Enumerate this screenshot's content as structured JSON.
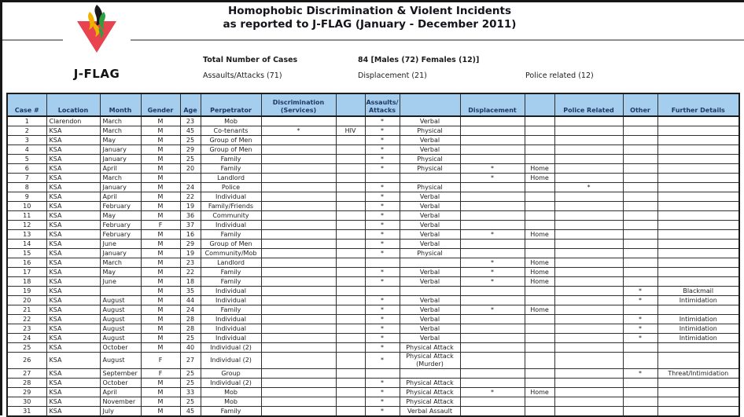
{
  "page": {
    "title_line1": "Homophobic Discrimination & Violent Incidents",
    "title_line2": "as reported to J-FLAG (January - December 2011)",
    "logo_text": "J-FLAG",
    "logo_colors": {
      "triangle": "#e8434f",
      "flame_black": "#1a1a1a",
      "flame_yellow": "#f0b400",
      "flame_green": "#2f9e41"
    }
  },
  "summary": {
    "total_label": "Total Number of Cases",
    "total_value": "84 [Males (72) Females (12)]",
    "assaults": "Assaults/Attacks (71)",
    "displacement": "Displacement (21)",
    "police": "Police related (12)"
  },
  "table": {
    "header_bg": "#a5cdee",
    "columns": [
      "Case #",
      "Location",
      "Month",
      "Gender",
      "Age",
      "Perpetrator",
      "Discrimination\n(Services)",
      "",
      "Assaults/\nAttacks",
      "",
      "Displacement",
      "",
      "Police Related",
      "Other",
      "Further Details"
    ],
    "rows": [
      [
        "1",
        "Clarendon",
        "March",
        "M",
        "23",
        "Mob",
        "",
        "",
        "*",
        "Verbal",
        "",
        "",
        "",
        "",
        ""
      ],
      [
        "2",
        "KSA",
        "March",
        "M",
        "45",
        "Co-tenants",
        "*",
        "HIV",
        "*",
        "Physical",
        "",
        "",
        "",
        "",
        ""
      ],
      [
        "3",
        "KSA",
        "May",
        "M",
        "25",
        "Group of Men",
        "",
        "",
        "*",
        "Verbal",
        "",
        "",
        "",
        "",
        ""
      ],
      [
        "4",
        "KSA",
        "January",
        "M",
        "29",
        "Group of Men",
        "",
        "",
        "*",
        "Verbal",
        "",
        "",
        "",
        "",
        ""
      ],
      [
        "5",
        "KSA",
        "January",
        "M",
        "25",
        "Family",
        "",
        "",
        "*",
        "Physical",
        "",
        "",
        "",
        "",
        ""
      ],
      [
        "6",
        "KSA",
        "April",
        "M",
        "20",
        "Family",
        "",
        "",
        "*",
        "Physical",
        "*",
        "Home",
        "",
        "",
        ""
      ],
      [
        "7",
        "KSA",
        "March",
        "M",
        "",
        "Landlord",
        "",
        "",
        "",
        "",
        "*",
        "Home",
        "",
        "",
        ""
      ],
      [
        "8",
        "KSA",
        "January",
        "M",
        "24",
        "Police",
        "",
        "",
        "*",
        "Physical",
        "",
        "",
        "*",
        "",
        ""
      ],
      [
        "9",
        "KSA",
        "April",
        "M",
        "22",
        "Individual",
        "",
        "",
        "*",
        "Verbal",
        "",
        "",
        "",
        "",
        ""
      ],
      [
        "10",
        "KSA",
        "February",
        "M",
        "19",
        "Family/Friends",
        "",
        "",
        "*",
        "Verbal",
        "",
        "",
        "",
        "",
        ""
      ],
      [
        "11",
        "KSA",
        "May",
        "M",
        "36",
        "Community",
        "",
        "",
        "*",
        "Verbal",
        "",
        "",
        "",
        "",
        ""
      ],
      [
        "12",
        "KSA",
        "February",
        "F",
        "37",
        "Individual",
        "",
        "",
        "*",
        "Verbal",
        "",
        "",
        "",
        "",
        ""
      ],
      [
        "13",
        "KSA",
        "February",
        "M",
        "16",
        "Family",
        "",
        "",
        "*",
        "Verbal",
        "*",
        "Home",
        "",
        "",
        ""
      ],
      [
        "14",
        "KSA",
        "June",
        "M",
        "29",
        "Group of Men",
        "",
        "",
        "*",
        "Verbal",
        "",
        "",
        "",
        "",
        ""
      ],
      [
        "15",
        "KSA",
        "January",
        "M",
        "19",
        "Community/Mob",
        "",
        "",
        "*",
        "Physical",
        "",
        "",
        "",
        "",
        ""
      ],
      [
        "16",
        "KSA",
        "March",
        "M",
        "23",
        "Landlord",
        "",
        "",
        "",
        "",
        "*",
        "Home",
        "",
        "",
        ""
      ],
      [
        "17",
        "KSA",
        "May",
        "M",
        "22",
        "Family",
        "",
        "",
        "*",
        "Verbal",
        "*",
        "Home",
        "",
        "",
        ""
      ],
      [
        "18",
        "KSA",
        "June",
        "M",
        "18",
        "Family",
        "",
        "",
        "*",
        "Verbal",
        "*",
        "Home",
        "",
        "",
        ""
      ],
      [
        "19",
        "KSA",
        "",
        "M",
        "35",
        "Individual",
        "",
        "",
        "",
        "",
        "",
        "",
        "",
        "*",
        "Blackmail"
      ],
      [
        "20",
        "KSA",
        "August",
        "M",
        "44",
        "Individual",
        "",
        "",
        "*",
        "Verbal",
        "",
        "",
        "",
        "*",
        "Intimidation"
      ],
      [
        "21",
        "KSA",
        "August",
        "M",
        "24",
        "Family",
        "",
        "",
        "*",
        "Verbal",
        "*",
        "Home",
        "",
        "",
        ""
      ],
      [
        "22",
        "KSA",
        "August",
        "M",
        "28",
        "Individual",
        "",
        "",
        "*",
        "Verbal",
        "",
        "",
        "",
        "*",
        "Intimidation"
      ],
      [
        "23",
        "KSA",
        "August",
        "M",
        "28",
        "Individual",
        "",
        "",
        "*",
        "Verbal",
        "",
        "",
        "",
        "*",
        "Intimidation"
      ],
      [
        "24",
        "KSA",
        "August",
        "M",
        "25",
        "Individual",
        "",
        "",
        "*",
        "Verbal",
        "",
        "",
        "",
        "*",
        "Intimidation"
      ],
      [
        "25",
        "KSA",
        "October",
        "M",
        "40",
        "Individual (2)",
        "",
        "",
        "*",
        "Physical Attack",
        "",
        "",
        "",
        "",
        ""
      ],
      [
        "26",
        "KSA",
        "August",
        "F",
        "27",
        "Individual (2)",
        "",
        "",
        "*",
        "Physical Attack (Murder)",
        "",
        "",
        "",
        "",
        ""
      ],
      [
        "27",
        "KSA",
        "September",
        "F",
        "25",
        "Group",
        "",
        "",
        "",
        "",
        "",
        "",
        "",
        "*",
        "Threat/Intimidation"
      ],
      [
        "28",
        "KSA",
        "October",
        "M",
        "25",
        "Individual (2)",
        "",
        "",
        "*",
        "Physical Attack",
        "",
        "",
        "",
        "",
        ""
      ],
      [
        "29",
        "KSA",
        "April",
        "M",
        "33",
        "Mob",
        "",
        "",
        "*",
        "Physical Attack",
        "*",
        "Home",
        "",
        "",
        ""
      ],
      [
        "30",
        "KSA",
        "November",
        "M",
        "25",
        "Mob",
        "",
        "",
        "*",
        "Physical Attack",
        "",
        "",
        "",
        "",
        ""
      ],
      [
        "31",
        "KSA",
        "July",
        "M",
        "45",
        "Family",
        "",
        "",
        "*",
        "Verbal Assault",
        "",
        "",
        "",
        "",
        ""
      ]
    ]
  }
}
